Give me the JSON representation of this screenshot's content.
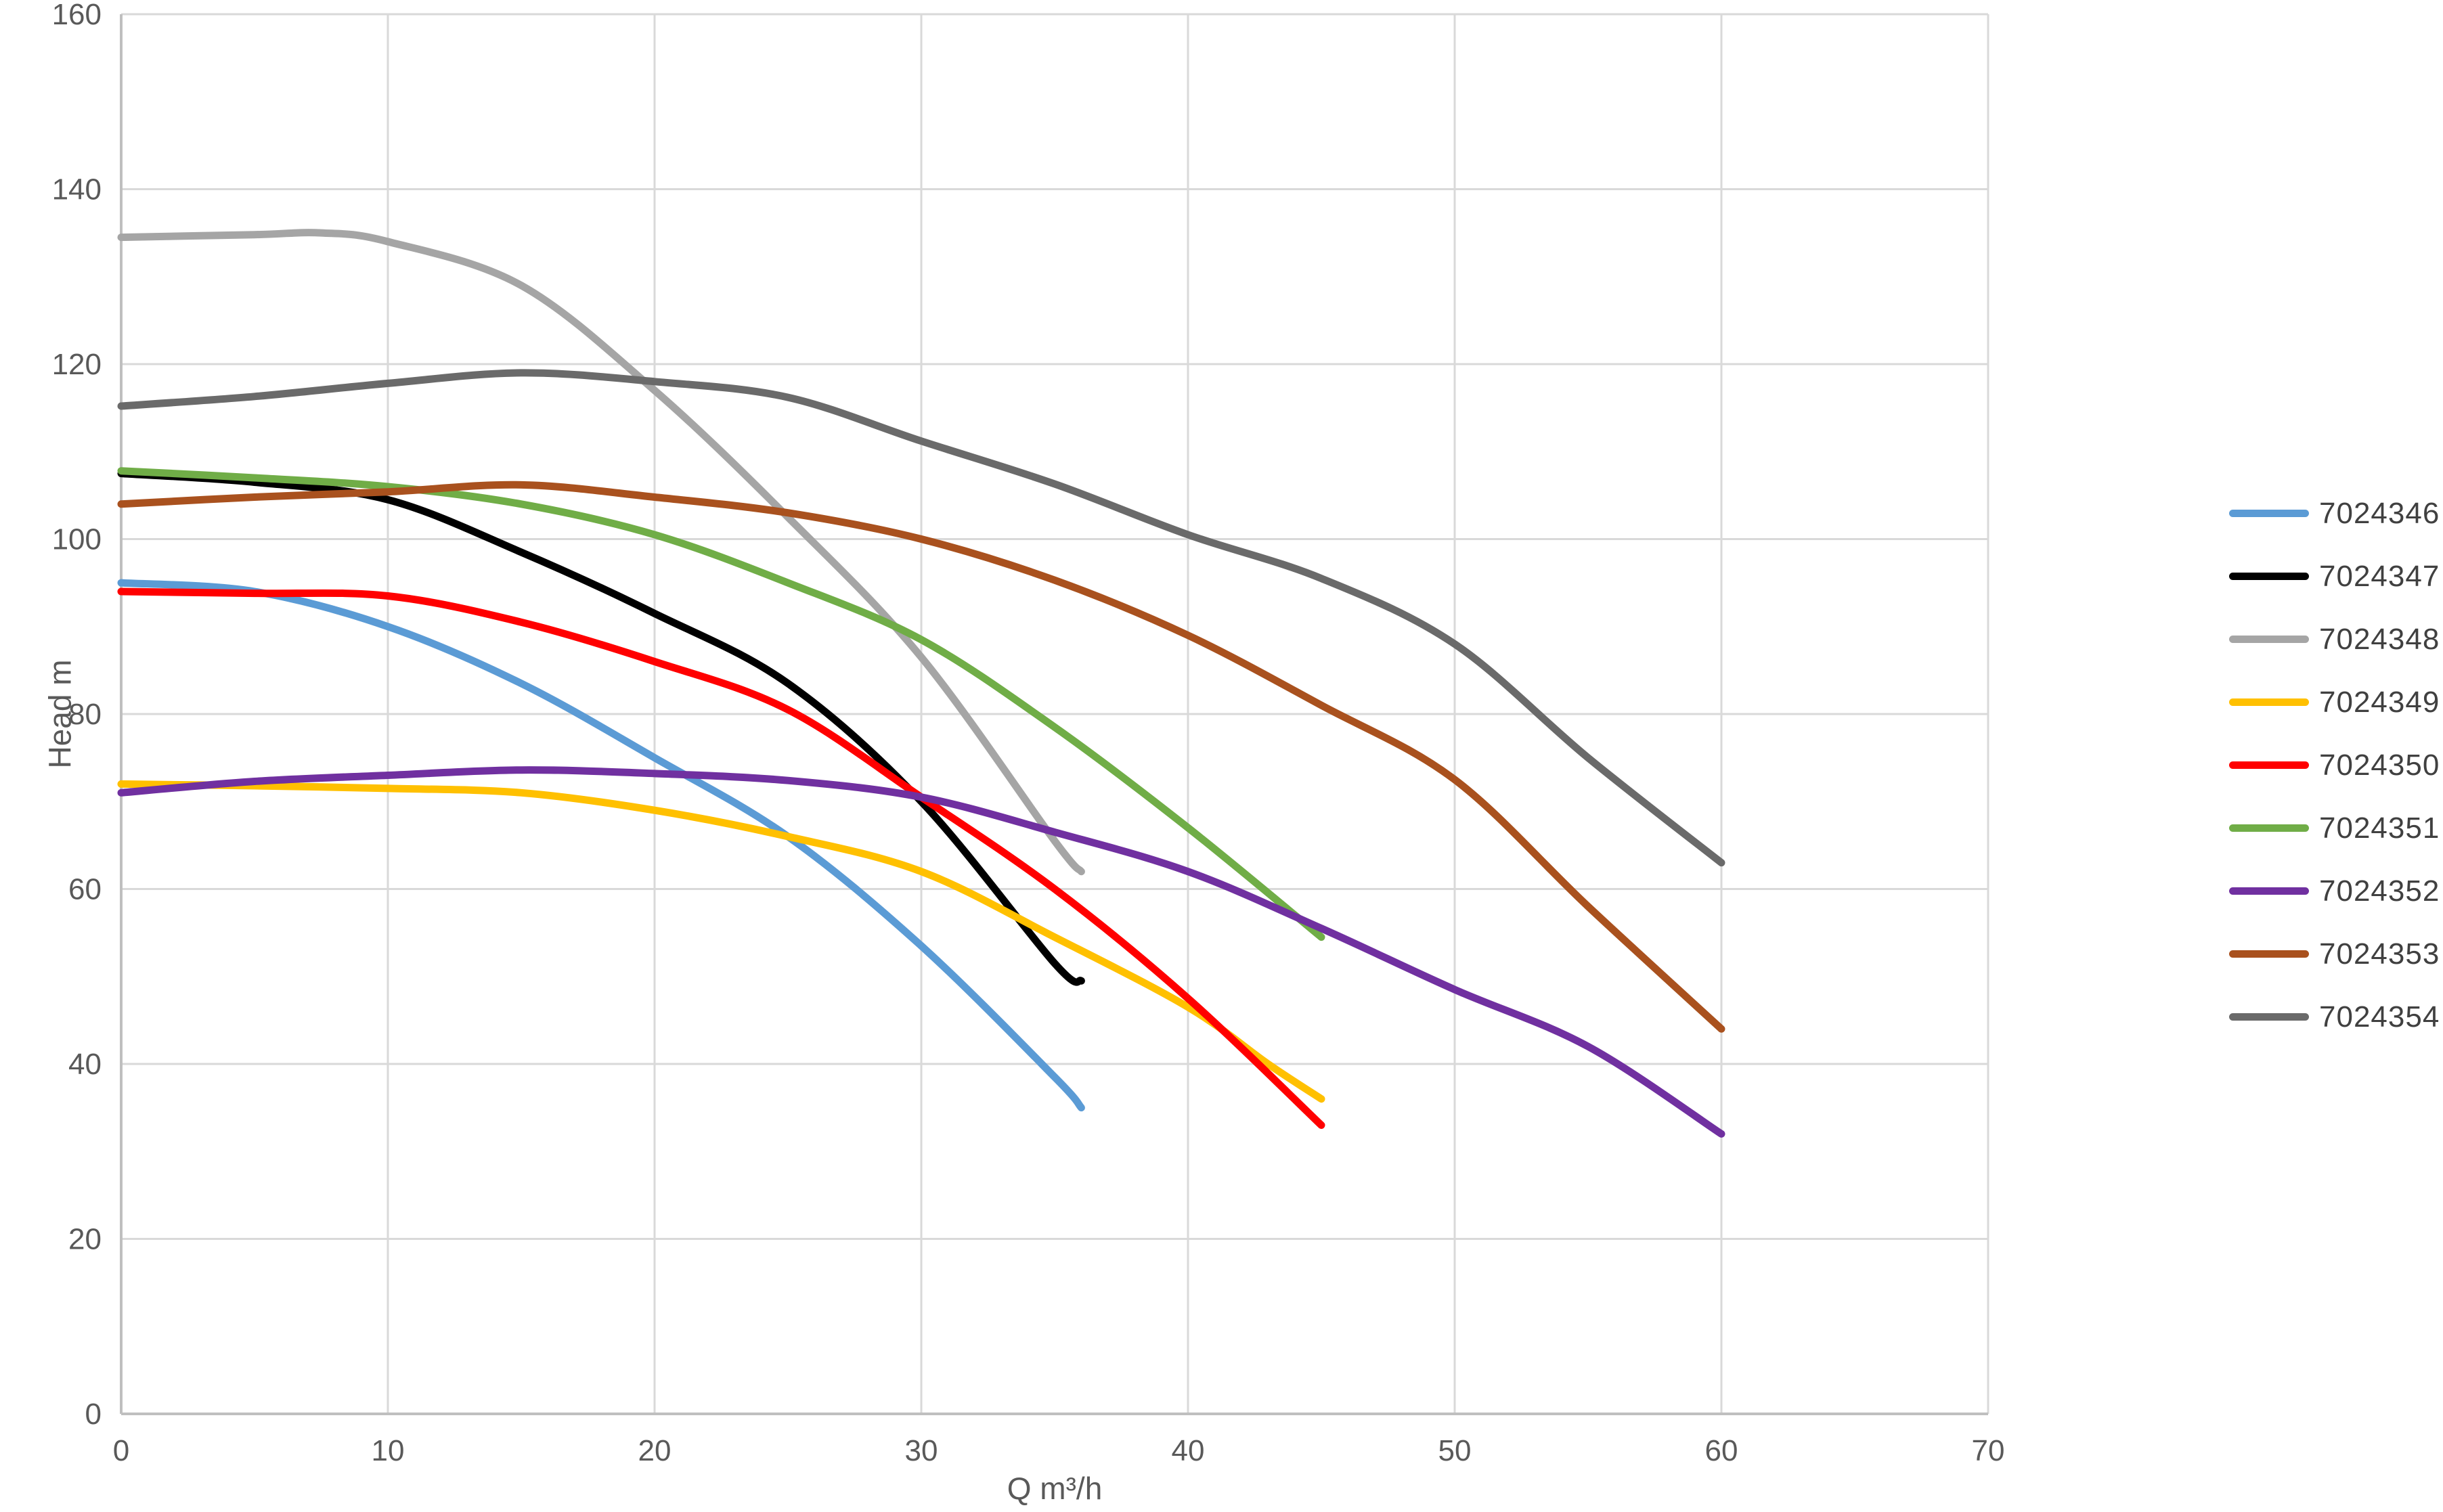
{
  "chart_data": {
    "type": "line",
    "title": "",
    "xlabel": "Q m³/h",
    "ylabel": "Head m",
    "xlim": [
      0,
      70
    ],
    "ylim": [
      0,
      160
    ],
    "x_ticks": [
      0,
      10,
      20,
      30,
      40,
      50,
      60,
      70
    ],
    "y_ticks": [
      0,
      20,
      40,
      60,
      80,
      100,
      120,
      140,
      160
    ],
    "grid": "on",
    "legend_position": "right",
    "colors": {
      "gridline": "#D9D9D9",
      "axis_line": "#BFBFBF",
      "tick_text": "#595959",
      "legend_text": "#404040",
      "background": "#FFFFFF"
    },
    "series": [
      {
        "name": "7024346",
        "color": "#5B9BD5",
        "points": [
          [
            0,
            95
          ],
          [
            5,
            94
          ],
          [
            10,
            90
          ],
          [
            15,
            83.5
          ],
          [
            20,
            75
          ],
          [
            25,
            66
          ],
          [
            30,
            53.5
          ],
          [
            35,
            38.5
          ],
          [
            36,
            35
          ]
        ]
      },
      {
        "name": "7024347",
        "color": "#000000",
        "points": [
          [
            0,
            107.5
          ],
          [
            5,
            106.5
          ],
          [
            10,
            104.5
          ],
          [
            15,
            98.5
          ],
          [
            20,
            91.5
          ],
          [
            25,
            83.5
          ],
          [
            30,
            70
          ],
          [
            35,
            51.5
          ],
          [
            36,
            49.5
          ]
        ]
      },
      {
        "name": "7024348",
        "color": "#A5A5A5",
        "points": [
          [
            0,
            134.5
          ],
          [
            5,
            134.8
          ],
          [
            7.5,
            135
          ],
          [
            10,
            134
          ],
          [
            15,
            129
          ],
          [
            20,
            117
          ],
          [
            25,
            102.5
          ],
          [
            30,
            86.5
          ],
          [
            35,
            65.5
          ],
          [
            36,
            62
          ]
        ]
      },
      {
        "name": "7024349",
        "color": "#FFC000",
        "points": [
          [
            0,
            72
          ],
          [
            5,
            71.8
          ],
          [
            10,
            71.5
          ],
          [
            15,
            71
          ],
          [
            20,
            69
          ],
          [
            25,
            66
          ],
          [
            30,
            62
          ],
          [
            35,
            54.5
          ],
          [
            40,
            46.5
          ],
          [
            43,
            40
          ],
          [
            45,
            36
          ]
        ]
      },
      {
        "name": "7024350",
        "color": "#FF0000",
        "points": [
          [
            0,
            94
          ],
          [
            5,
            93.8
          ],
          [
            10,
            93.5
          ],
          [
            15,
            90.5
          ],
          [
            20,
            86
          ],
          [
            25,
            80.5
          ],
          [
            30,
            70.5
          ],
          [
            35,
            60
          ],
          [
            40,
            47.5
          ],
          [
            45,
            33
          ]
        ]
      },
      {
        "name": "7024351",
        "color": "#70AD47",
        "points": [
          [
            0,
            107.8
          ],
          [
            5,
            107
          ],
          [
            10,
            106
          ],
          [
            15,
            104
          ],
          [
            20,
            100.5
          ],
          [
            25,
            95
          ],
          [
            30,
            88.5
          ],
          [
            35,
            78.5
          ],
          [
            40,
            67
          ],
          [
            45,
            54.5
          ]
        ]
      },
      {
        "name": "7024352",
        "color": "#7030A0",
        "points": [
          [
            0,
            71
          ],
          [
            5,
            72.3
          ],
          [
            10,
            73
          ],
          [
            15,
            73.6
          ],
          [
            20,
            73.2
          ],
          [
            25,
            72.4
          ],
          [
            30,
            70.5
          ],
          [
            35,
            66.5
          ],
          [
            40,
            62
          ],
          [
            45,
            55.5
          ],
          [
            50,
            48.5
          ],
          [
            55,
            42
          ],
          [
            60,
            32
          ]
        ]
      },
      {
        "name": "7024353",
        "color": "#A9511E",
        "points": [
          [
            0,
            104
          ],
          [
            5,
            104.8
          ],
          [
            10,
            105.4
          ],
          [
            15,
            106.2
          ],
          [
            20,
            104.8
          ],
          [
            25,
            103
          ],
          [
            30,
            100
          ],
          [
            35,
            95.3
          ],
          [
            40,
            89
          ],
          [
            45,
            81
          ],
          [
            50,
            72.5
          ],
          [
            55,
            58
          ],
          [
            60,
            44
          ]
        ]
      },
      {
        "name": "7024354",
        "color": "#6A6A6A",
        "points": [
          [
            0,
            115.2
          ],
          [
            5,
            116.3
          ],
          [
            10,
            117.8
          ],
          [
            15,
            119
          ],
          [
            20,
            118
          ],
          [
            25,
            116.2
          ],
          [
            30,
            111.2
          ],
          [
            35,
            106.3
          ],
          [
            40,
            100.5
          ],
          [
            45,
            95.5
          ],
          [
            50,
            88
          ],
          [
            55,
            75
          ],
          [
            60,
            63
          ]
        ]
      }
    ]
  },
  "layout_note": ""
}
